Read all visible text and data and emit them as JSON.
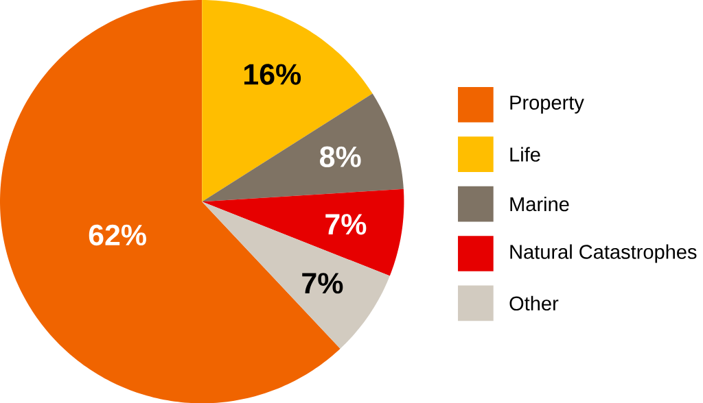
{
  "chart_data": {
    "type": "pie",
    "categories": [
      "Property",
      "Life",
      "Marine",
      "Natural Catastrophes",
      "Other"
    ],
    "values": [
      62,
      16,
      8,
      7,
      7
    ],
    "colors": [
      "#f06400",
      "#ffbe00",
      "#7f7364",
      "#e60000",
      "#d2cbc0"
    ],
    "value_labels": [
      "62%",
      "16%",
      "8%",
      "7%",
      "7%"
    ],
    "legend": "right"
  }
}
